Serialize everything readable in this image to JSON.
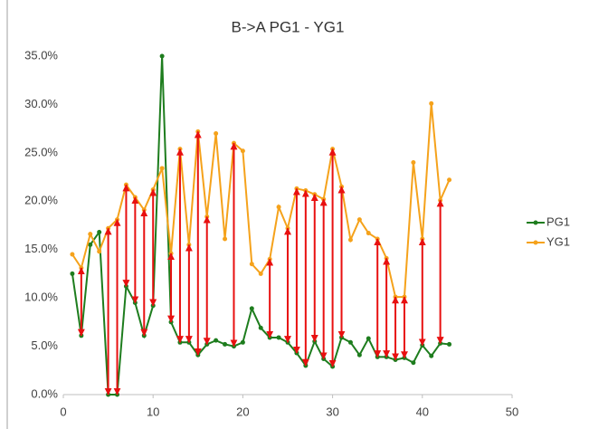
{
  "chart_data": {
    "type": "line",
    "title": "B->A PG1 - YG1",
    "x": [
      1,
      2,
      3,
      4,
      5,
      6,
      7,
      8,
      9,
      10,
      11,
      12,
      13,
      14,
      15,
      16,
      17,
      18,
      19,
      20,
      21,
      22,
      23,
      24,
      25,
      26,
      27,
      28,
      29,
      30,
      31,
      32,
      33,
      34,
      35,
      36,
      37,
      38,
      39,
      40,
      41,
      42,
      43
    ],
    "series": [
      {
        "name": "PG1",
        "color": "#1e7d1e",
        "values": [
          12.5,
          6.1,
          15.5,
          16.8,
          0.0,
          0.0,
          11.2,
          9.5,
          6.1,
          9.2,
          35.0,
          7.5,
          5.4,
          5.4,
          4.1,
          5.2,
          5.6,
          5.2,
          5.0,
          5.4,
          8.9,
          6.9,
          5.9,
          5.9,
          5.4,
          4.3,
          3.0,
          5.5,
          3.7,
          2.9,
          5.9,
          5.4,
          4.1,
          5.8,
          3.9,
          3.9,
          3.6,
          3.8,
          3.3,
          5.1,
          4.0,
          5.3,
          5.2
        ]
      },
      {
        "name": "YG1",
        "color": "#f5a21b",
        "values": [
          14.5,
          13.1,
          16.6,
          14.8,
          17.2,
          18.1,
          21.7,
          20.4,
          19.1,
          21.2,
          23.4,
          14.6,
          25.4,
          15.5,
          27.2,
          18.4,
          27.0,
          16.1,
          26.0,
          25.2,
          13.5,
          12.5,
          14.0,
          19.4,
          17.2,
          21.3,
          21.1,
          20.7,
          20.2,
          25.4,
          21.5,
          16.0,
          18.1,
          16.7,
          16.1,
          14.1,
          10.1,
          10.1,
          24.0,
          16.1,
          30.1,
          20.1,
          22.2
        ]
      }
    ],
    "difference_arrows": [
      2,
      5,
      6,
      7,
      8,
      9,
      10,
      12,
      13,
      14,
      15,
      16,
      19,
      23,
      25,
      26,
      27,
      28,
      29,
      30,
      31,
      35,
      36,
      37,
      38,
      40,
      42
    ],
    "arrow_color": "#e81010",
    "xlim": [
      0,
      50
    ],
    "xticks": [
      0,
      10,
      20,
      30,
      40,
      50
    ],
    "ylim": [
      0,
      35
    ],
    "yticks": [
      {
        "value": 0,
        "label": "0.0%"
      },
      {
        "value": 5,
        "label": "5.0%"
      },
      {
        "value": 10,
        "label": "10.0%"
      },
      {
        "value": 15,
        "label": "15.0%"
      },
      {
        "value": 20,
        "label": "20.0%"
      },
      {
        "value": 25,
        "label": "25.0%"
      },
      {
        "value": 30,
        "label": "30.0%"
      },
      {
        "value": 35,
        "label": "35.0%"
      }
    ],
    "grid": false,
    "legend": "right"
  }
}
